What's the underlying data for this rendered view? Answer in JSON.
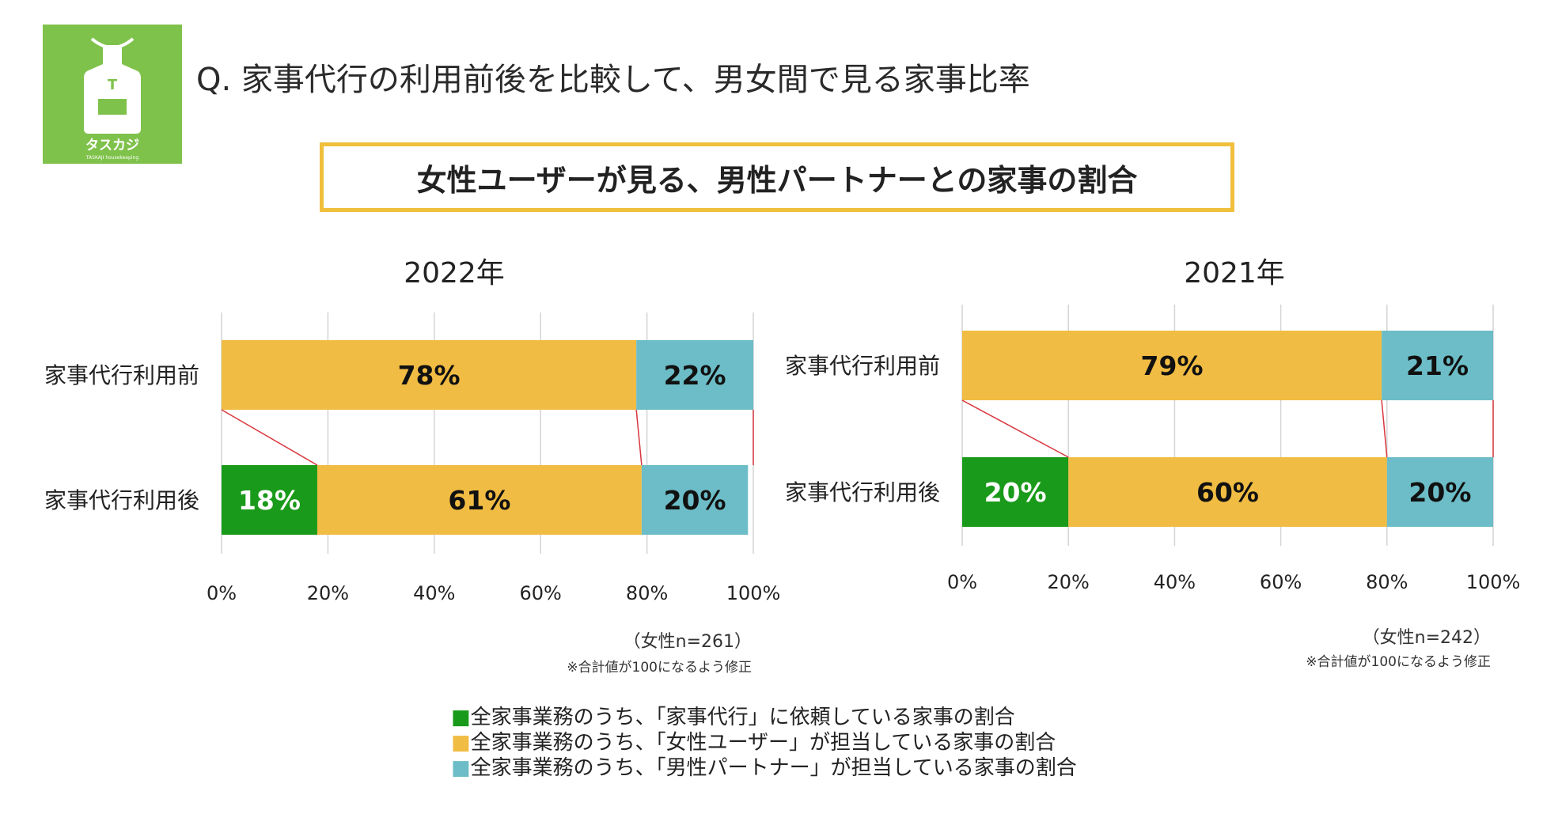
{
  "logo": {
    "text": "タスカジ",
    "sub": "TASKAJI housekeeping",
    "letter": "T"
  },
  "title": "Q. 家事代行の利用前後を比較して、男女間で見る家事比率",
  "subtitle": "女性ユーザーが見る、男性パートナーとの家事の割合",
  "colors": {
    "green": "#1a9a1a",
    "yellow": "#f1bc43",
    "teal": "#6cbdc7",
    "connector": "#d9363e"
  },
  "chart_data": [
    {
      "type": "bar",
      "stacked": true,
      "orientation": "horizontal",
      "title": "2022年",
      "categories": [
        "家事代行利用前",
        "家事代行利用後"
      ],
      "series": [
        {
          "name": "全家事業務のうち、「家事代行」に依頼している家事の割合",
          "values": [
            0,
            18
          ]
        },
        {
          "name": "全家事業務のうち、「女性ユーザー」が担当している家事の割合",
          "values": [
            78,
            61
          ]
        },
        {
          "name": "全家事業務のうち、「男性パートナー」が担当している家事の割合",
          "values": [
            22,
            20
          ]
        }
      ],
      "xlim": [
        0,
        100
      ],
      "xticks": [
        "0%",
        "20%",
        "40%",
        "60%",
        "80%",
        "100%"
      ],
      "note_n": "（女性n=261）",
      "note_fix": "※合計値が100になるよう修正"
    },
    {
      "type": "bar",
      "stacked": true,
      "orientation": "horizontal",
      "title": "2021年",
      "categories": [
        "家事代行利用前",
        "家事代行利用後"
      ],
      "series": [
        {
          "name": "全家事業務のうち、「家事代行」に依頼している家事の割合",
          "values": [
            0,
            20
          ]
        },
        {
          "name": "全家事業務のうち、「女性ユーザー」が担当している家事の割合",
          "values": [
            79,
            60
          ]
        },
        {
          "name": "全家事業務のうち、「男性パートナー」が担当している家事の割合",
          "values": [
            21,
            20
          ]
        }
      ],
      "xlim": [
        0,
        100
      ],
      "xticks": [
        "0%",
        "20%",
        "40%",
        "60%",
        "80%",
        "100%"
      ],
      "note_n": "（女性n=242）",
      "note_fix": "※合計値が100になるよう修正"
    }
  ],
  "legend": [
    "■全家事業務のうち、「家事代行」に依頼している家事の割合",
    "■全家事業務のうち、「女性ユーザー」が担当している家事の割合",
    "■全家事業務のうち、「男性パートナー」が担当している家事の割合"
  ]
}
